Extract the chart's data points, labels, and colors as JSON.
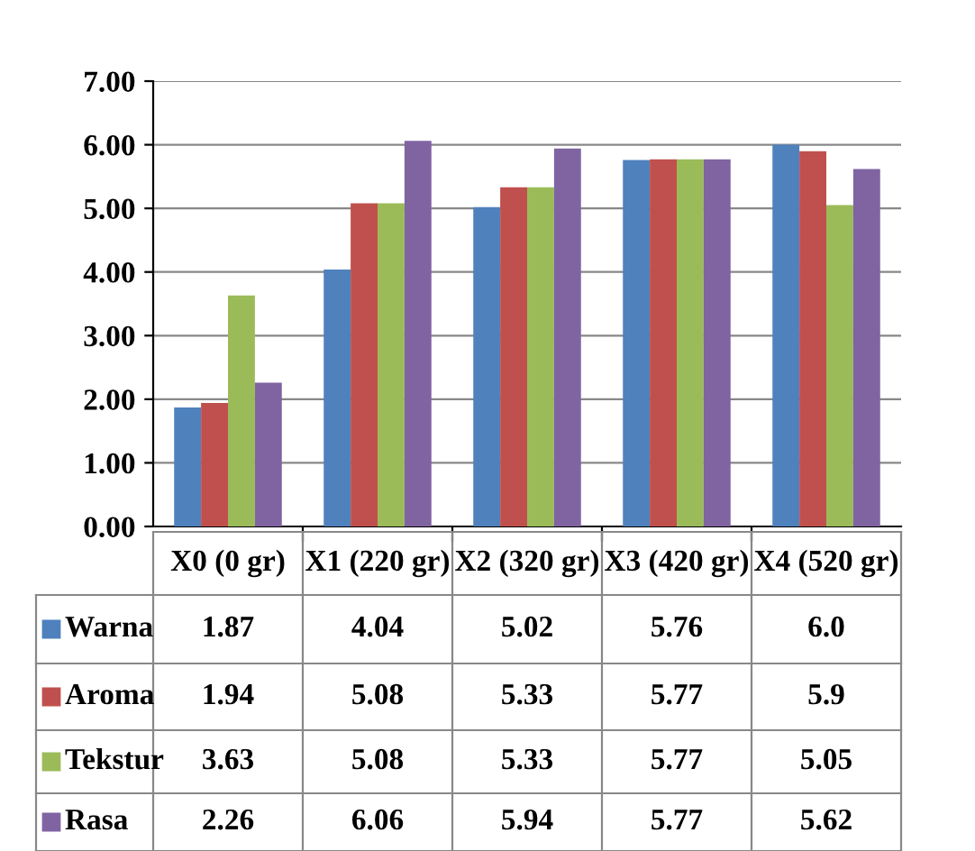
{
  "chart_data": {
    "type": "bar",
    "categories": [
      "X0 (0 gr)",
      "X1 (220 gr)",
      "X2 (320 gr)",
      "X3 (420 gr)",
      "X4 (520 gr)"
    ],
    "series": [
      {
        "name": "Warna",
        "color": "#4f81bd",
        "values": [
          1.87,
          4.04,
          5.02,
          5.76,
          6.0
        ],
        "value_labels": [
          "1.87",
          "4.04",
          "5.02",
          "5.76",
          "6.0"
        ]
      },
      {
        "name": "Aroma",
        "color": "#c0504d",
        "values": [
          1.94,
          5.08,
          5.33,
          5.77,
          5.9
        ],
        "value_labels": [
          "1.94",
          "5.08",
          "5.33",
          "5.77",
          "5.9"
        ]
      },
      {
        "name": "Tekstur",
        "color": "#9bbb59",
        "values": [
          3.63,
          5.08,
          5.33,
          5.77,
          5.05
        ],
        "value_labels": [
          "3.63",
          "5.08",
          "5.33",
          "5.77",
          "5.05"
        ]
      },
      {
        "name": "Rasa",
        "color": "#8064a2",
        "values": [
          2.26,
          6.06,
          5.94,
          5.77,
          5.62
        ],
        "value_labels": [
          "2.26",
          "6.06",
          "5.94",
          "5.77",
          "5.62"
        ]
      }
    ],
    "ylim": [
      0,
      7
    ],
    "yticks": [
      {
        "value": 0,
        "label": "0.00"
      },
      {
        "value": 1,
        "label": "1.00"
      },
      {
        "value": 2,
        "label": "2.00"
      },
      {
        "value": 3,
        "label": "3.00"
      },
      {
        "value": 4,
        "label": "4.00"
      },
      {
        "value": 5,
        "label": "5.00"
      },
      {
        "value": 6,
        "label": "6.00"
      },
      {
        "value": 7,
        "label": "7.00"
      }
    ],
    "grid": "y",
    "legend": "bottom"
  }
}
